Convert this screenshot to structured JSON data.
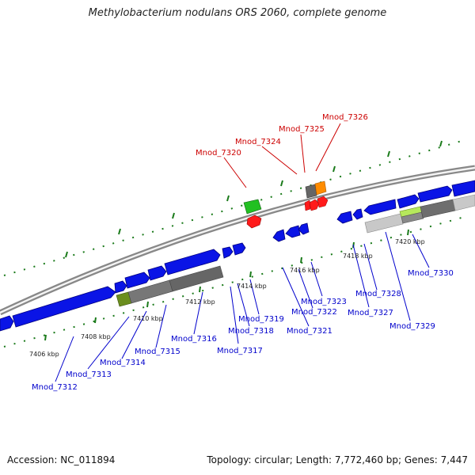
{
  "title": "Methylobacterium nodulans ORS 2060, complete genome",
  "footer": {
    "accession": "Accession: NC_011894",
    "summary": "Topology: circular; Length: 7,772,460 bp; Genes: 7,447"
  },
  "colors": {
    "forward_gene": "#0a14e6",
    "rna_red": "#ff1a1a",
    "rna_green": "#22c022",
    "orange": "#ff8c00",
    "gray_dark": "#666666",
    "gray_light": "#c8c8c8",
    "olive": "#6b8e1e",
    "lime": "#b6e85c",
    "tick": "#1a7a1a",
    "label_blue": "#0000cc",
    "label_red": "#cc0000"
  },
  "scale_labels": [
    "7406 kbp",
    "7408 kbp",
    "7410 kbp",
    "7412 kbp",
    "7414 kbp",
    "7416 kbp",
    "7418 kbp",
    "7420 kbp"
  ],
  "gene_labels_red": [
    "Mnod_7320",
    "Mnod_7324",
    "Mnod_7325",
    "Mnod_7326"
  ],
  "gene_labels_blue": [
    "Mnod_7312",
    "Mnod_7313",
    "Mnod_7314",
    "Mnod_7315",
    "Mnod_7316",
    "Mnod_7317",
    "Mnod_7318",
    "Mnod_7319",
    "Mnod_7321",
    "Mnod_7322",
    "Mnod_7323",
    "Mnod_7327",
    "Mnod_7328",
    "Mnod_7329",
    "Mnod_7330"
  ]
}
